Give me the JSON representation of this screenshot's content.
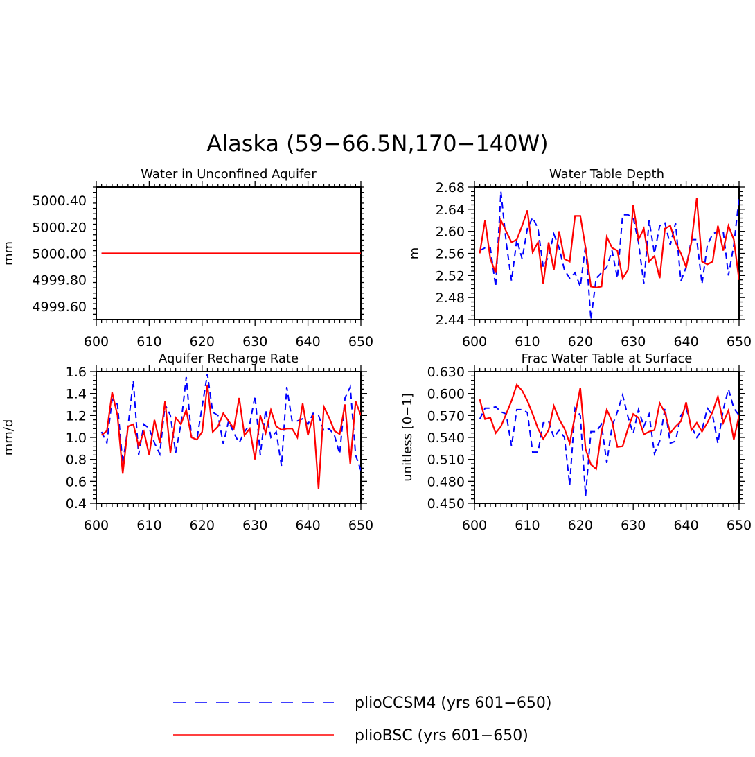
{
  "figure_title": "Alaska (59−66.5N,170−140W)",
  "legend": [
    {
      "label": "plioCCSM4 (yrs 601−650)",
      "color": "#0000ff",
      "dash": true
    },
    {
      "label": "plioBSC (yrs 601−650)",
      "color": "#ff0000",
      "dash": false
    }
  ],
  "chart_data": [
    {
      "type": "line",
      "title": "Water in Unconfined Aquifer",
      "xlabel": "",
      "ylabel": "mm",
      "xlim": [
        600,
        650
      ],
      "ylim": [
        4999.5,
        5000.5
      ],
      "xticks": [
        600,
        610,
        620,
        630,
        640,
        650
      ],
      "yticks": [
        4999.6,
        4999.8,
        5000.0,
        5000.2,
        5000.4
      ],
      "ytick_labels": [
        "4999.60",
        "4999.80",
        "5000.00",
        "5000.20",
        "5000.40"
      ],
      "x": [
        601,
        602,
        603,
        604,
        605,
        606,
        607,
        608,
        609,
        610,
        611,
        612,
        613,
        614,
        615,
        616,
        617,
        618,
        619,
        620,
        621,
        622,
        623,
        624,
        625,
        626,
        627,
        628,
        629,
        630,
        631,
        632,
        633,
        634,
        635,
        636,
        637,
        638,
        639,
        640,
        641,
        642,
        643,
        644,
        645,
        646,
        647,
        648,
        649,
        650
      ],
      "series": [
        {
          "name": "plioCCSM4 (yrs 601−650)",
          "color": "#0000ff",
          "dash": true,
          "values": [
            5000.0,
            5000.0,
            5000.0,
            5000.0,
            5000.0,
            5000.0,
            5000.0,
            5000.0,
            5000.0,
            5000.0,
            5000.0,
            5000.0,
            5000.0,
            5000.0,
            5000.0,
            5000.0,
            5000.0,
            5000.0,
            5000.0,
            5000.0,
            5000.0,
            5000.0,
            5000.0,
            5000.0,
            5000.0,
            5000.0,
            5000.0,
            5000.0,
            5000.0,
            5000.0,
            5000.0,
            5000.0,
            5000.0,
            5000.0,
            5000.0,
            5000.0,
            5000.0,
            5000.0,
            5000.0,
            5000.0,
            5000.0,
            5000.0,
            5000.0,
            5000.0,
            5000.0,
            5000.0,
            5000.0,
            5000.0,
            5000.0,
            5000.0
          ]
        },
        {
          "name": "plioBSC (yrs 601−650)",
          "color": "#ff0000",
          "dash": false,
          "values": [
            5000.0,
            5000.0,
            5000.0,
            5000.0,
            5000.0,
            5000.0,
            5000.0,
            5000.0,
            5000.0,
            5000.0,
            5000.0,
            5000.0,
            5000.0,
            5000.0,
            5000.0,
            5000.0,
            5000.0,
            5000.0,
            5000.0,
            5000.0,
            5000.0,
            5000.0,
            5000.0,
            5000.0,
            5000.0,
            5000.0,
            5000.0,
            5000.0,
            5000.0,
            5000.0,
            5000.0,
            5000.0,
            5000.0,
            5000.0,
            5000.0,
            5000.0,
            5000.0,
            5000.0,
            5000.0,
            5000.0,
            5000.0,
            5000.0,
            5000.0,
            5000.0,
            5000.0,
            5000.0,
            5000.0,
            5000.0,
            5000.0,
            5000.0
          ]
        }
      ]
    },
    {
      "type": "line",
      "title": "Water Table Depth",
      "xlabel": "",
      "ylabel": "m",
      "xlim": [
        600,
        650
      ],
      "ylim": [
        2.44,
        2.68
      ],
      "xticks": [
        600,
        610,
        620,
        630,
        640,
        650
      ],
      "yticks": [
        2.44,
        2.48,
        2.52,
        2.56,
        2.6,
        2.64,
        2.68
      ],
      "ytick_labels": [
        "2.44",
        "2.48",
        "2.52",
        "2.56",
        "2.60",
        "2.64",
        "2.68"
      ],
      "x": [
        601,
        602,
        603,
        604,
        605,
        606,
        607,
        608,
        609,
        610,
        611,
        612,
        613,
        614,
        615,
        616,
        617,
        618,
        619,
        620,
        621,
        622,
        623,
        624,
        625,
        626,
        627,
        628,
        629,
        630,
        631,
        632,
        633,
        634,
        635,
        636,
        637,
        638,
        639,
        640,
        641,
        642,
        643,
        644,
        645,
        646,
        647,
        648,
        649,
        650
      ],
      "series": [
        {
          "name": "plioCCSM4 (yrs 601−650)",
          "color": "#0000ff",
          "dash": true,
          "values": [
            2.565,
            2.57,
            2.57,
            2.5,
            2.672,
            2.58,
            2.51,
            2.585,
            2.55,
            2.605,
            2.625,
            2.605,
            2.535,
            2.555,
            2.595,
            2.57,
            2.53,
            2.515,
            2.525,
            2.5,
            2.575,
            2.44,
            2.515,
            2.525,
            2.535,
            2.565,
            2.515,
            2.63,
            2.63,
            2.625,
            2.58,
            2.505,
            2.62,
            2.56,
            2.61,
            2.615,
            2.575,
            2.615,
            2.51,
            2.535,
            2.585,
            2.585,
            2.505,
            2.575,
            2.595,
            2.6,
            2.6,
            2.52,
            2.575,
            2.66
          ]
        },
        {
          "name": "plioBSC (yrs 601−650)",
          "color": "#ff0000",
          "dash": false,
          "values": [
            2.56,
            2.62,
            2.55,
            2.525,
            2.62,
            2.6,
            2.58,
            2.585,
            2.61,
            2.638,
            2.562,
            2.58,
            2.505,
            2.58,
            2.53,
            2.6,
            2.55,
            2.545,
            2.628,
            2.628,
            2.57,
            2.5,
            2.498,
            2.5,
            2.59,
            2.57,
            2.565,
            2.515,
            2.53,
            2.648,
            2.585,
            2.605,
            2.545,
            2.555,
            2.515,
            2.605,
            2.61,
            2.58,
            2.56,
            2.535,
            2.58,
            2.66,
            2.545,
            2.54,
            2.545,
            2.61,
            2.565,
            2.61,
            2.585,
            2.512
          ]
        }
      ]
    },
    {
      "type": "line",
      "title": "Aquifer Recharge Rate",
      "xlabel": "",
      "ylabel": "mm/d",
      "xlim": [
        600,
        650
      ],
      "ylim": [
        0.4,
        1.6
      ],
      "xticks": [
        600,
        610,
        620,
        630,
        640,
        650
      ],
      "yticks": [
        0.4,
        0.6,
        0.8,
        1.0,
        1.2,
        1.4,
        1.6
      ],
      "ytick_labels": [
        "0.4",
        "0.6",
        "0.8",
        "1.0",
        "1.2",
        "1.4",
        "1.6"
      ],
      "x": [
        601,
        602,
        603,
        604,
        605,
        606,
        607,
        608,
        609,
        610,
        611,
        612,
        613,
        614,
        615,
        616,
        617,
        618,
        619,
        620,
        621,
        622,
        623,
        624,
        625,
        626,
        627,
        628,
        629,
        630,
        631,
        632,
        633,
        634,
        635,
        636,
        637,
        638,
        639,
        640,
        641,
        642,
        643,
        644,
        645,
        646,
        647,
        648,
        649,
        650
      ],
      "series": [
        {
          "name": "plioCCSM4 (yrs 601−650)",
          "color": "#0000ff",
          "dash": true,
          "values": [
            1.05,
            0.95,
            1.35,
            1.3,
            0.76,
            1.1,
            1.52,
            0.84,
            1.12,
            1.08,
            0.95,
            0.85,
            1.3,
            1.2,
            0.86,
            1.12,
            1.55,
            1.0,
            0.98,
            1.28,
            1.58,
            1.23,
            1.2,
            0.94,
            1.15,
            1.04,
            0.95,
            1.05,
            1.12,
            1.38,
            0.84,
            1.25,
            1.0,
            1.05,
            0.74,
            1.46,
            1.15,
            1.15,
            1.17,
            1.12,
            1.22,
            1.2,
            1.06,
            1.08,
            1.02,
            0.85,
            1.36,
            1.46,
            0.84,
            0.7
          ]
        },
        {
          "name": "plioBSC (yrs 601−650)",
          "color": "#ff0000",
          "dash": false,
          "values": [
            1.02,
            1.06,
            1.41,
            1.2,
            0.67,
            1.1,
            1.12,
            0.92,
            1.05,
            0.84,
            1.16,
            0.95,
            1.33,
            0.86,
            1.18,
            1.12,
            1.25,
            1.0,
            0.98,
            1.05,
            1.48,
            1.05,
            1.1,
            1.22,
            1.15,
            1.08,
            1.36,
            1.02,
            1.08,
            0.8,
            1.2,
            1.04,
            1.25,
            1.1,
            1.07,
            1.08,
            1.08,
            1.0,
            1.31,
            1.02,
            1.2,
            0.53,
            1.28,
            1.18,
            1.06,
            1.03,
            1.3,
            0.76,
            1.33,
            1.2
          ]
        }
      ]
    },
    {
      "type": "line",
      "title": "Frac Water Table at Surface",
      "xlabel": "",
      "ylabel": "unitless [0−1]",
      "xlim": [
        600,
        650
      ],
      "ylim": [
        0.45,
        0.63
      ],
      "xticks": [
        600,
        610,
        620,
        630,
        640,
        650
      ],
      "yticks": [
        0.45,
        0.48,
        0.51,
        0.54,
        0.57,
        0.6,
        0.63
      ],
      "ytick_labels": [
        "0.450",
        "0.480",
        "0.510",
        "0.540",
        "0.570",
        "0.600",
        "0.630"
      ],
      "x": [
        601,
        602,
        603,
        604,
        605,
        606,
        607,
        608,
        609,
        610,
        611,
        612,
        613,
        614,
        615,
        616,
        617,
        618,
        619,
        620,
        621,
        622,
        623,
        624,
        625,
        626,
        627,
        628,
        629,
        630,
        631,
        632,
        633,
        634,
        635,
        636,
        637,
        638,
        639,
        640,
        641,
        642,
        643,
        644,
        645,
        646,
        647,
        648,
        649,
        650
      ],
      "series": [
        {
          "name": "plioCCSM4 (yrs 601−650)",
          "color": "#0000ff",
          "dash": true,
          "values": [
            0.565,
            0.58,
            0.58,
            0.582,
            0.575,
            0.572,
            0.528,
            0.578,
            0.578,
            0.574,
            0.52,
            0.52,
            0.56,
            0.562,
            0.54,
            0.55,
            0.54,
            0.475,
            0.58,
            0.57,
            0.46,
            0.548,
            0.548,
            0.558,
            0.505,
            0.555,
            0.575,
            0.598,
            0.568,
            0.545,
            0.578,
            0.555,
            0.572,
            0.518,
            0.535,
            0.58,
            0.532,
            0.535,
            0.57,
            0.58,
            0.555,
            0.54,
            0.55,
            0.58,
            0.57,
            0.532,
            0.578,
            0.606,
            0.58,
            0.57
          ]
        },
        {
          "name": "plioBSC (yrs 601−650)",
          "color": "#ff0000",
          "dash": false,
          "values": [
            0.592,
            0.565,
            0.567,
            0.546,
            0.555,
            0.572,
            0.59,
            0.612,
            0.604,
            0.59,
            0.572,
            0.552,
            0.538,
            0.55,
            0.583,
            0.565,
            0.552,
            0.532,
            0.57,
            0.608,
            0.524,
            0.503,
            0.497,
            0.548,
            0.578,
            0.562,
            0.527,
            0.528,
            0.552,
            0.572,
            0.567,
            0.544,
            0.548,
            0.55,
            0.587,
            0.574,
            0.546,
            0.555,
            0.562,
            0.588,
            0.55,
            0.56,
            0.548,
            0.56,
            0.575,
            0.596,
            0.56,
            0.577,
            0.537,
            0.57
          ]
        }
      ]
    }
  ]
}
